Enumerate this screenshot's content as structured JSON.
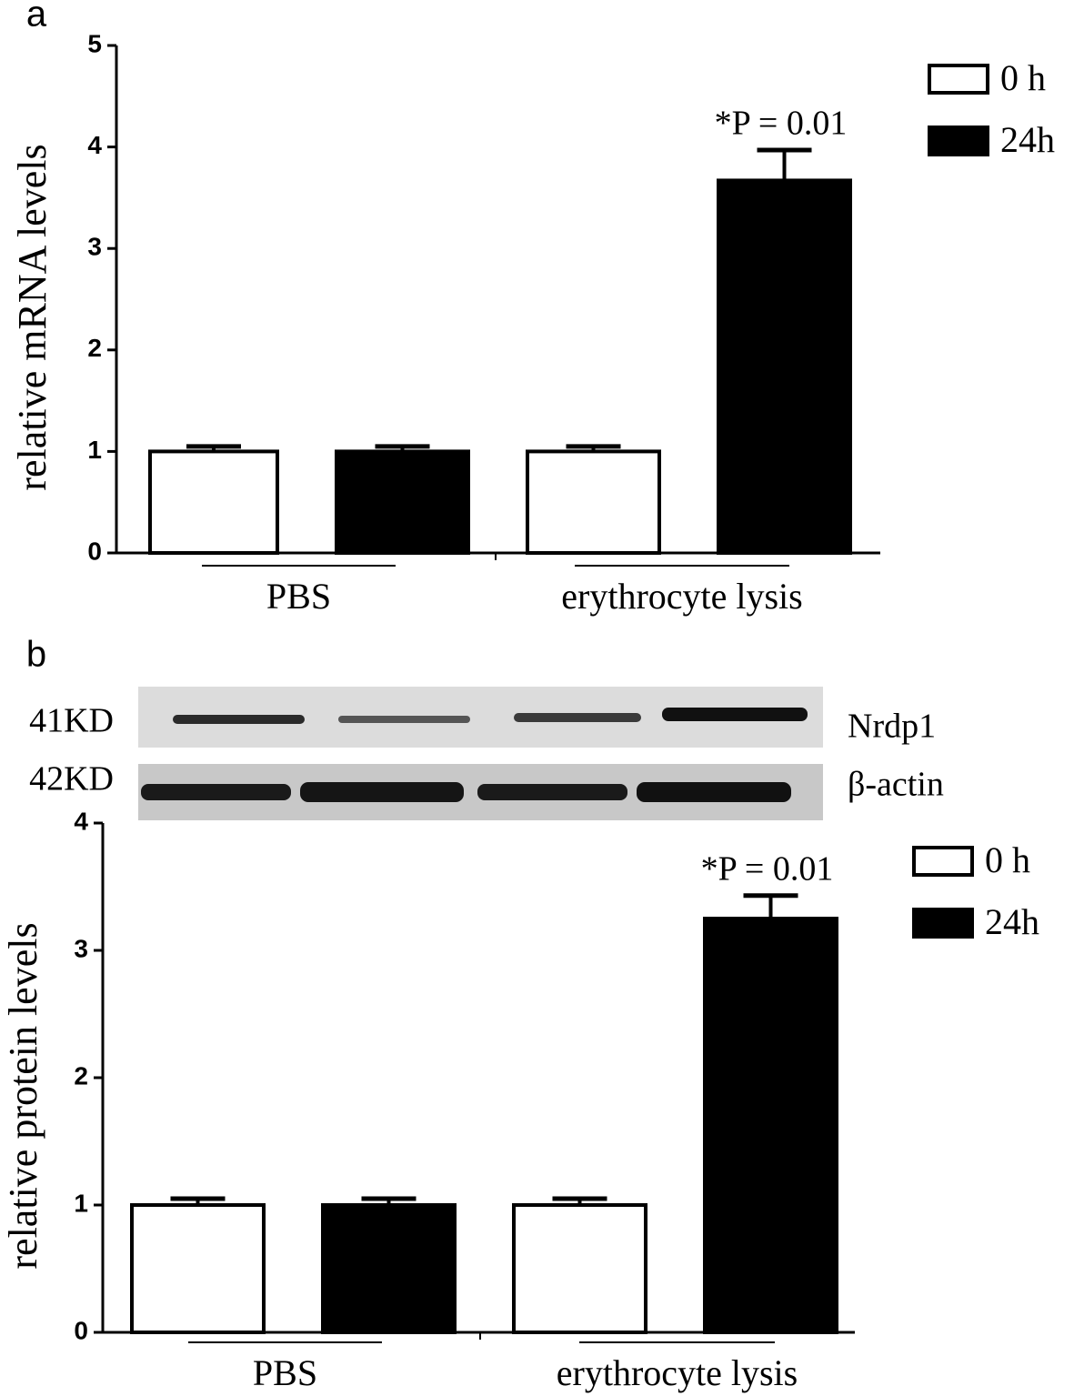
{
  "chart_data": [
    {
      "type": "bar",
      "panel": "a",
      "y_label": "relative mRNA levels",
      "categories": [
        "PBS",
        "erythrocyte lysis"
      ],
      "series": [
        {
          "name": "0 h",
          "color": "#ffffff",
          "values": [
            1,
            1
          ],
          "errors": [
            0.05,
            0.05
          ]
        },
        {
          "name": "24h",
          "color": "#000000",
          "values": [
            1,
            3.67
          ],
          "errors": [
            0.05,
            0.3
          ]
        }
      ],
      "annotations": [
        "*P = 0.01"
      ],
      "ylim": [
        0,
        5
      ],
      "yticks": [
        0,
        1,
        2,
        3,
        4,
        5
      ]
    },
    {
      "type": "bar",
      "panel": "b",
      "y_label": "relative protein levels",
      "blot": {
        "rows": [
          {
            "weight": "41KD",
            "protein": "Nrdp1"
          },
          {
            "weight": "42KD",
            "protein": "β-actin"
          }
        ]
      },
      "categories": [
        "PBS",
        "erythrocyte lysis"
      ],
      "series": [
        {
          "name": "0 h",
          "color": "#ffffff",
          "values": [
            1,
            1
          ],
          "errors": [
            0.05,
            0.05
          ]
        },
        {
          "name": "24h",
          "color": "#000000",
          "values": [
            1,
            3.25
          ],
          "errors": [
            0.05,
            0.18
          ]
        }
      ],
      "annotations": [
        "*P = 0.01"
      ],
      "ylim": [
        0,
        4
      ],
      "yticks": [
        0,
        1,
        2,
        3,
        4
      ]
    }
  ]
}
